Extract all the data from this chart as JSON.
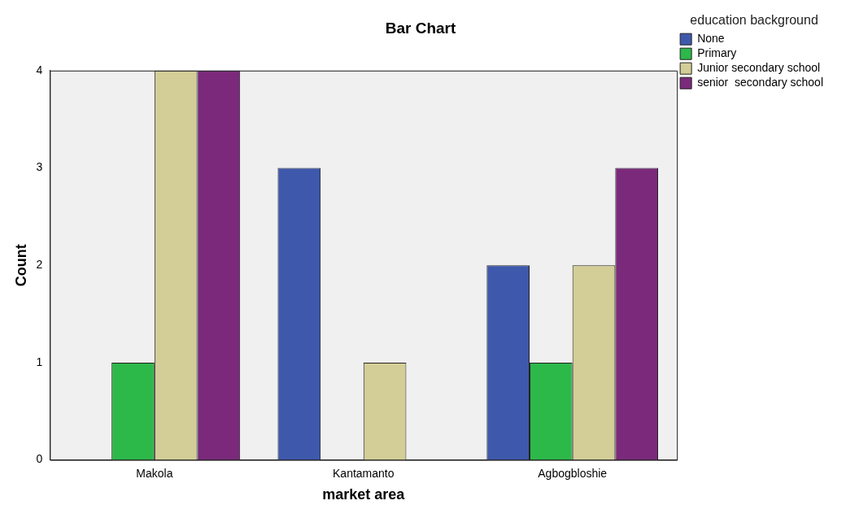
{
  "chart_data": {
    "type": "bar",
    "title": "Bar Chart",
    "xlabel": "market area",
    "ylabel": "Count",
    "legend_title": "education background",
    "categories": [
      "Makola",
      "Kantamanto",
      "Agbogbloshie"
    ],
    "series": [
      {
        "name": "None",
        "color": "#3e58ac",
        "values": [
          null,
          3,
          2
        ]
      },
      {
        "name": "Primary",
        "color": "#2db84a",
        "values": [
          1,
          null,
          1
        ]
      },
      {
        "name": "Junior secondary school",
        "color": "#d3ce97",
        "values": [
          4,
          1,
          2
        ]
      },
      {
        "name": "senior  secondary school",
        "color": "#7b2a7b",
        "values": [
          4,
          null,
          3
        ]
      }
    ],
    "ylim": [
      0,
      4
    ],
    "yticks": [
      0,
      1,
      2,
      3,
      4
    ],
    "grid": false,
    "legend": "right"
  }
}
